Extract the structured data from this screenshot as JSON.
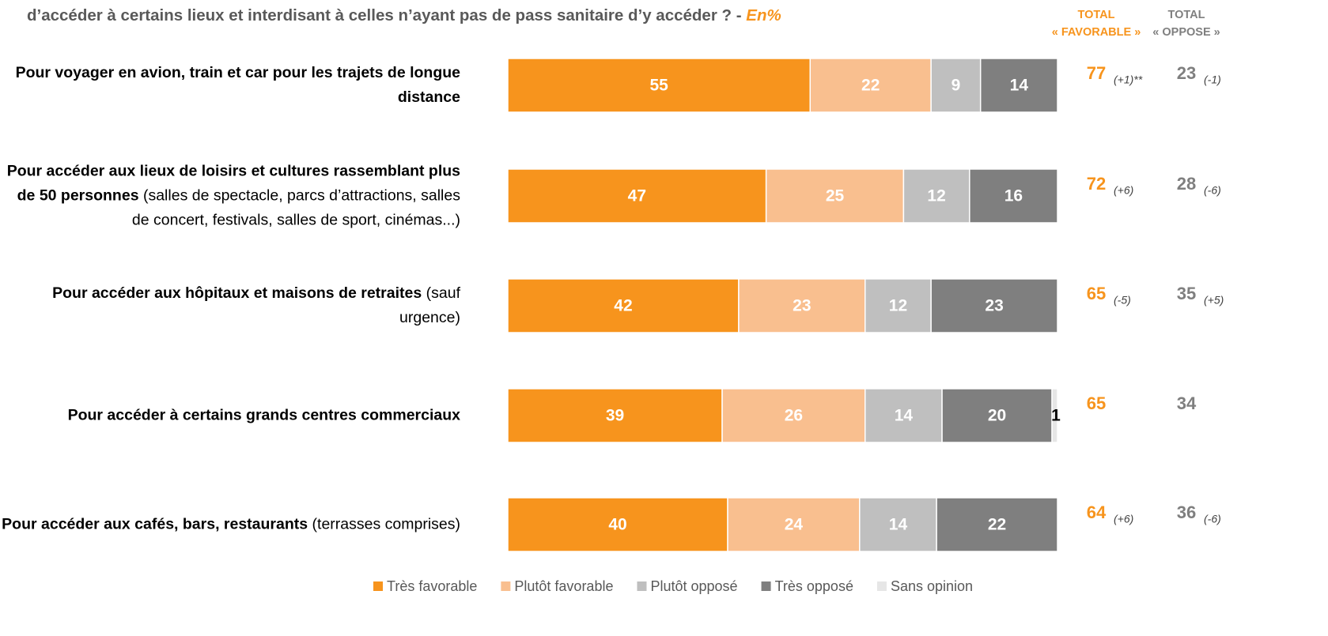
{
  "chart_data": {
    "type": "bar",
    "orientation": "horizontal",
    "stacked": true,
    "title": "d’accéder à certains lieux et interdisant à celles n’ayant pas de pass sanitaire d’y accéder ? -",
    "title_unit": "En%",
    "xlim": [
      0,
      100
    ],
    "categories": [
      {
        "label": "Pour voyager en avion, train et car pour les trajets de longue distance",
        "detail": null
      },
      {
        "label": "Pour accéder aux lieux de loisirs et cultures rassemblant plus de 50 personnes",
        "detail": "(salles de spectacle, parcs d’attractions, salles de concert, festivals, salles de sport, cinémas...)"
      },
      {
        "label": "Pour accéder aux hôpitaux et maisons de retraites",
        "detail": "(sauf urgence)"
      },
      {
        "label": "Pour accéder à certains grands centres commerciaux",
        "detail": null
      },
      {
        "label": "Pour accéder aux cafés, bars, restaurants",
        "detail": "(terrasses comprises)"
      }
    ],
    "series": [
      {
        "name": "Très favorable",
        "color": "#f7941d",
        "values": [
          55,
          47,
          42,
          39,
          40
        ]
      },
      {
        "name": "Plutôt favorable",
        "color": "#f9bf8f",
        "values": [
          22,
          25,
          23,
          26,
          24
        ]
      },
      {
        "name": "Plutôt opposé",
        "color": "#bfbfbf",
        "values": [
          9,
          12,
          12,
          14,
          14
        ]
      },
      {
        "name": "Très opposé",
        "color": "#7f7f7f",
        "values": [
          14,
          16,
          23,
          20,
          22
        ]
      },
      {
        "name": "Sans opinion",
        "color": "#e6e6e6",
        "values": [
          null,
          null,
          null,
          1,
          null
        ]
      }
    ],
    "legend": "bottom",
    "totals": [
      {
        "header": "TOTAL",
        "subheader": "« FAVORABLE »",
        "color": "#f7941d",
        "values": [
          "77",
          "72",
          "65",
          "65",
          "64"
        ],
        "changes": [
          "(+1)**",
          "(+6)",
          "(-5)",
          null,
          "(+6)"
        ]
      },
      {
        "header": "TOTAL",
        "subheader": "« OPPOSE »",
        "color": "#7f7f7f",
        "values": [
          "23",
          "28",
          "35",
          "34",
          "36"
        ],
        "changes": [
          "(-1)",
          "(-6)",
          "(+5)",
          null,
          "(-6)"
        ]
      }
    ]
  }
}
